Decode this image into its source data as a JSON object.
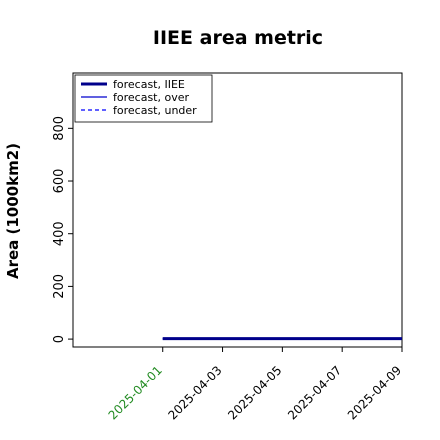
{
  "chart_data": {
    "type": "line",
    "title": "IIEE area metric",
    "xlabel": "",
    "ylabel": "Area (1000km2)",
    "x": [
      "2025-04-01",
      "2025-04-02",
      "2025-04-03",
      "2025-04-04",
      "2025-04-05",
      "2025-04-06",
      "2025-04-07",
      "2025-04-08",
      "2025-04-09"
    ],
    "x_ticks": [
      "2025-04-01",
      "2025-04-03",
      "2025-04-05",
      "2025-04-07",
      "2025-04-09"
    ],
    "xlim": [
      "2025-03-29",
      "2025-04-09"
    ],
    "ylim": [
      -30,
      1010
    ],
    "y_ticks": [
      0,
      200,
      400,
      600,
      800
    ],
    "grid": false,
    "legend_placement": "upper left",
    "highlight_tick": "2025-04-01",
    "highlight_tick_color": "#228b22",
    "series": [
      {
        "name": "forecast, IIEE",
        "values": [
          2,
          2,
          2,
          2,
          2,
          2,
          2,
          2,
          2
        ],
        "color": "#00008b",
        "style": "solid",
        "width": 3
      },
      {
        "name": "forecast, over",
        "values": [
          1,
          1,
          1,
          1,
          1,
          1,
          1,
          1,
          1
        ],
        "color": "#0000cd",
        "style": "solid",
        "width": 1.2
      },
      {
        "name": "forecast, under",
        "values": [
          1,
          1,
          1,
          1,
          1,
          1,
          1,
          1,
          1
        ],
        "color": "#0000ff",
        "style": "dashed",
        "width": 1.2
      }
    ]
  }
}
